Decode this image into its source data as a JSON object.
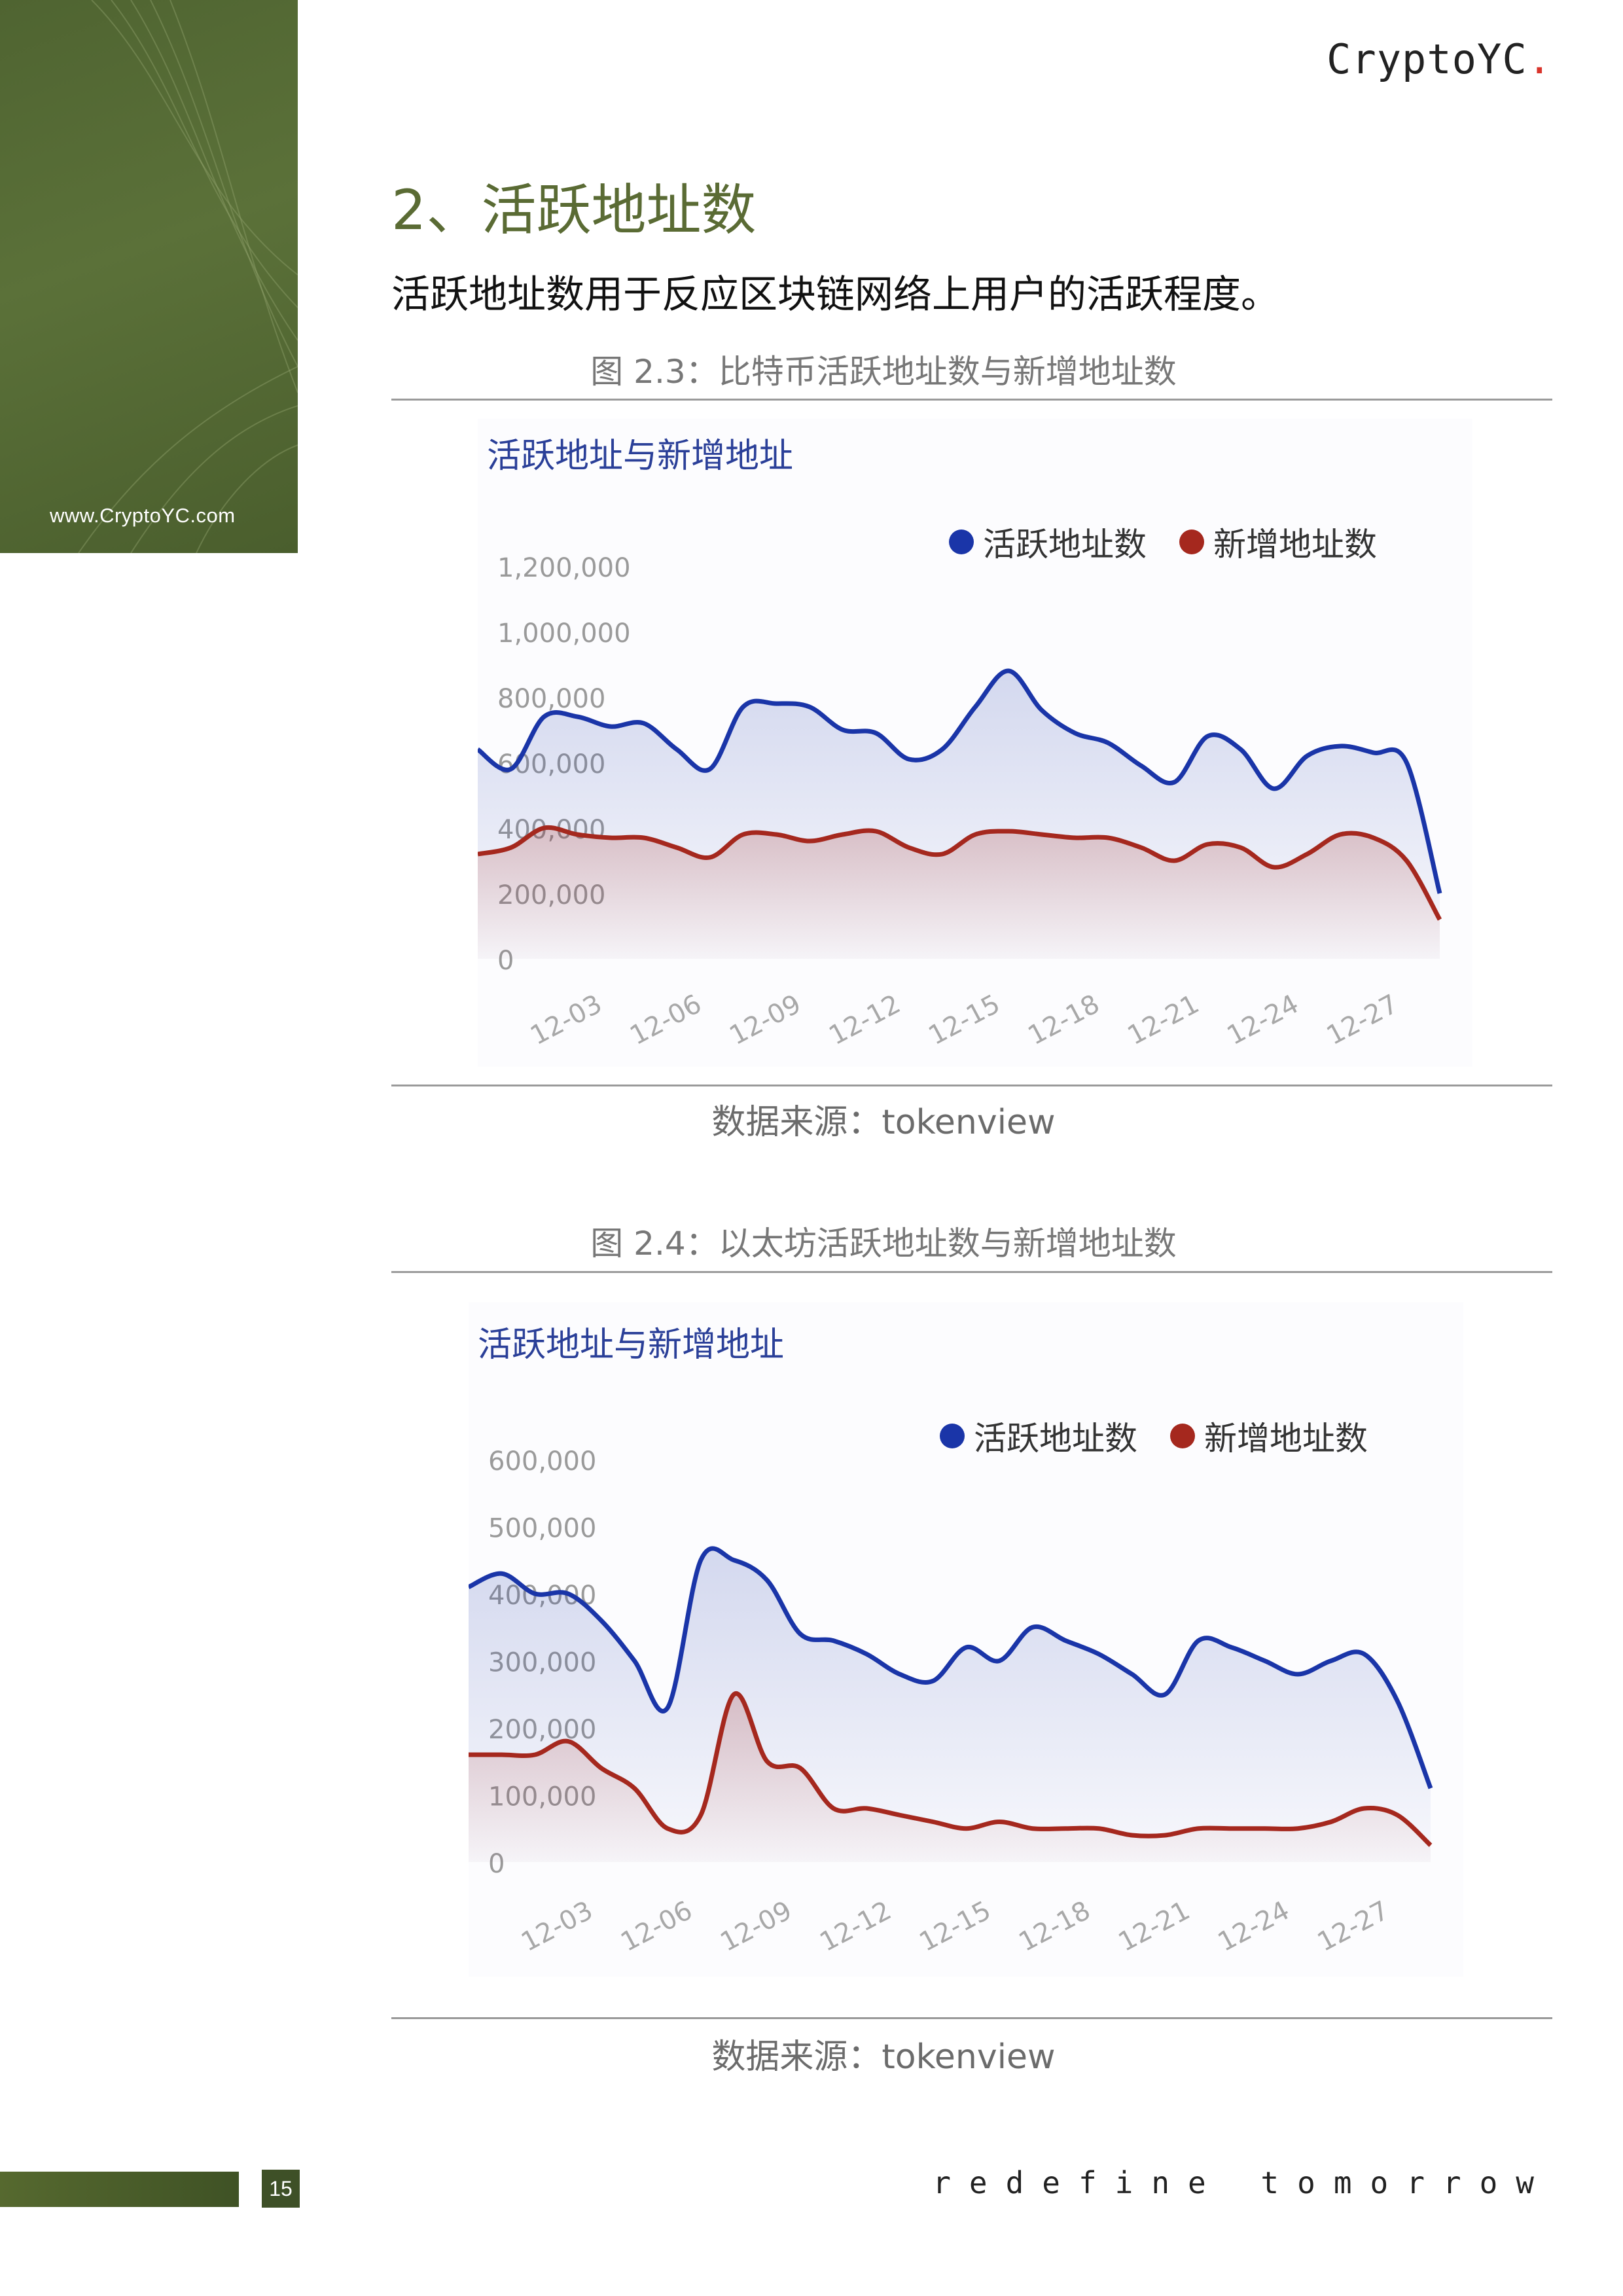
{
  "site_url": "www.CryptoYC.com",
  "brand": {
    "name": "CryptoYC",
    "dot": "."
  },
  "section_title": "2、活跃地址数",
  "intro": "活跃地址数用于反应区块链网络上用户的活跃程度。",
  "figures": [
    {
      "caption": "图 2.3：比特币活跃地址数与新增地址数",
      "source": "数据来源：tokenview"
    },
    {
      "caption": "图 2.4：以太坊活跃地址数与新增地址数",
      "source": "数据来源：tokenview"
    }
  ],
  "chart_data": [
    {
      "type": "area",
      "title": "活跃地址与新增地址",
      "legend_position": "top-right",
      "ylim": [
        0,
        1200000
      ],
      "y_ticks": [
        "1,200,000",
        "1,000,000",
        "800,000",
        "600,000",
        "400,000",
        "200,000",
        "0"
      ],
      "x_ticks": [
        "12-03",
        "12-06",
        "12-09",
        "12-12",
        "12-15",
        "12-18",
        "12-21",
        "12-24",
        "12-27"
      ],
      "x": [
        "12-01",
        "12-02",
        "12-03",
        "12-04",
        "12-05",
        "12-06",
        "12-07",
        "12-08",
        "12-09",
        "12-10",
        "12-11",
        "12-12",
        "12-13",
        "12-14",
        "12-15",
        "12-16",
        "12-17",
        "12-18",
        "12-19",
        "12-20",
        "12-21",
        "12-22",
        "12-23",
        "12-24",
        "12-25",
        "12-26",
        "12-27",
        "12-28",
        "12-29",
        "12-30"
      ],
      "series": [
        {
          "name": "活跃地址数",
          "color": "#1a35a8",
          "values": [
            640000,
            580000,
            740000,
            740000,
            710000,
            720000,
            640000,
            580000,
            770000,
            780000,
            770000,
            700000,
            690000,
            610000,
            640000,
            770000,
            880000,
            760000,
            690000,
            660000,
            590000,
            540000,
            680000,
            640000,
            520000,
            620000,
            650000,
            630000,
            600000,
            200000
          ]
        },
        {
          "name": "新增地址数",
          "color": "#a5281e",
          "values": [
            320000,
            340000,
            400000,
            380000,
            370000,
            370000,
            340000,
            310000,
            380000,
            380000,
            360000,
            380000,
            390000,
            340000,
            320000,
            380000,
            390000,
            380000,
            370000,
            370000,
            340000,
            300000,
            350000,
            340000,
            280000,
            320000,
            380000,
            370000,
            300000,
            120000
          ]
        }
      ]
    },
    {
      "type": "area",
      "title": "活跃地址与新增地址",
      "legend_position": "top-right",
      "ylim": [
        0,
        600000
      ],
      "y_ticks": [
        "600,000",
        "500,000",
        "400,000",
        "300,000",
        "200,000",
        "100,000",
        "0"
      ],
      "x_ticks": [
        "12-03",
        "12-06",
        "12-09",
        "12-12",
        "12-15",
        "12-18",
        "12-21",
        "12-24",
        "12-27"
      ],
      "x": [
        "12-01",
        "12-02",
        "12-03",
        "12-04",
        "12-05",
        "12-06",
        "12-07",
        "12-08",
        "12-09",
        "12-10",
        "12-11",
        "12-12",
        "12-13",
        "12-14",
        "12-15",
        "12-16",
        "12-17",
        "12-18",
        "12-19",
        "12-20",
        "12-21",
        "12-22",
        "12-23",
        "12-24",
        "12-25",
        "12-26",
        "12-27",
        "12-28",
        "12-29",
        "12-30"
      ],
      "series": [
        {
          "name": "活跃地址数",
          "color": "#1a35a8",
          "values": [
            410000,
            430000,
            400000,
            400000,
            360000,
            300000,
            230000,
            450000,
            450000,
            420000,
            340000,
            330000,
            310000,
            280000,
            270000,
            320000,
            300000,
            350000,
            330000,
            310000,
            280000,
            250000,
            330000,
            320000,
            300000,
            280000,
            300000,
            310000,
            240000,
            110000
          ]
        },
        {
          "name": "新增地址数",
          "color": "#a5281e",
          "values": [
            160000,
            160000,
            160000,
            180000,
            140000,
            110000,
            50000,
            70000,
            250000,
            150000,
            140000,
            80000,
            80000,
            70000,
            60000,
            50000,
            60000,
            50000,
            50000,
            50000,
            40000,
            40000,
            50000,
            50000,
            50000,
            50000,
            60000,
            80000,
            70000,
            25000
          ]
        }
      ]
    }
  ],
  "page_number": "15",
  "slogan": "redefine tomorrow"
}
